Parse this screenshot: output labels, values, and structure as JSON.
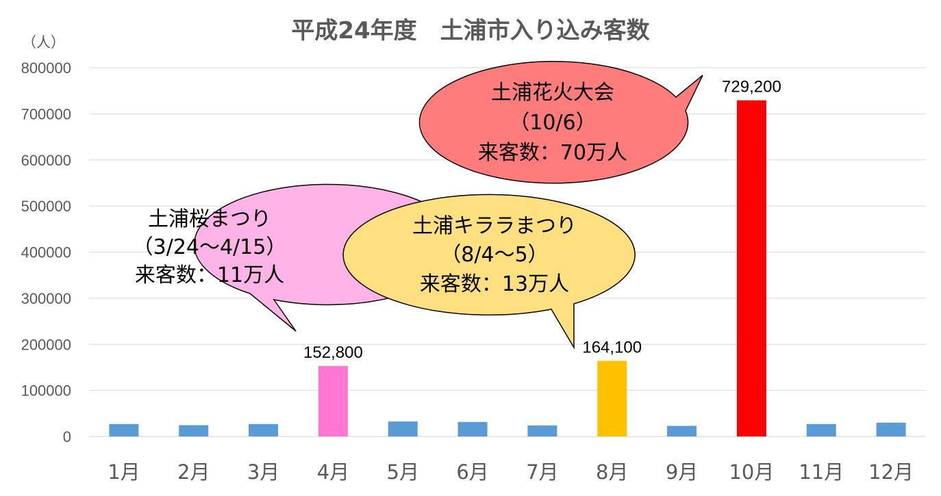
{
  "chart_data": {
    "type": "bar",
    "title": "平成24年度　土浦市入り込み客数",
    "ylabel": "（人）",
    "xlabel": "",
    "ylim": [
      0,
      800000
    ],
    "yticks": [
      "0",
      "100000",
      "200000",
      "300000",
      "400000",
      "500000",
      "600000",
      "700000",
      "800000"
    ],
    "categories": [
      "1月",
      "2月",
      "3月",
      "4月",
      "5月",
      "6月",
      "7月",
      "8月",
      "9月",
      "10月",
      "11月",
      "12月"
    ],
    "values": [
      27000,
      24500,
      27000,
      152800,
      32500,
      31500,
      24000,
      164100,
      23000,
      729200,
      27000,
      30000
    ],
    "bar_colors": [
      "#5b9bd5",
      "#5b9bd5",
      "#5b9bd5",
      "#ff77d0",
      "#5b9bd5",
      "#5b9bd5",
      "#5b9bd5",
      "#ffc000",
      "#5b9bd5",
      "#ff0000",
      "#5b9bd5",
      "#5b9bd5"
    ],
    "data_labels": [
      {
        "index": 3,
        "text": "152,800"
      },
      {
        "index": 7,
        "text": "164,100"
      },
      {
        "index": 9,
        "text": "729,200"
      }
    ],
    "grid": true,
    "legend": "none",
    "annotations": [
      {
        "target_index": 3,
        "lines": [
          "土浦桜まつり",
          "（3/24～4/15）",
          "来客数：11万人"
        ],
        "fill": "#ffb3e6"
      },
      {
        "target_index": 7,
        "lines": [
          "土浦キララまつり",
          "（8/4～5）",
          "来客数：13万人"
        ],
        "fill": "#ffe080"
      },
      {
        "target_index": 9,
        "lines": [
          "土浦花火大会",
          "（10/6）",
          "来客数：70万人"
        ],
        "fill": "#ff7c7c"
      }
    ]
  }
}
